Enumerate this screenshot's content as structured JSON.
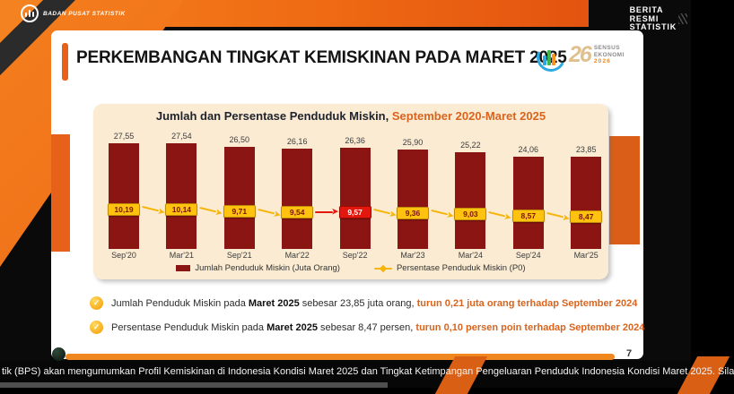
{
  "header": {
    "brand": "BADAN PUSAT STATISTIK",
    "brs_lines": [
      "BERITA",
      "RESMI",
      "STATISTIK"
    ]
  },
  "slide": {
    "title": "PERKEMBANGAN TINGKAT KEMISKINAN PADA MARET 2025",
    "page_number": "7",
    "sensus_logo": {
      "swirl": "26",
      "line1": "SENSUS",
      "line2": "EKONOMI",
      "year": "2026"
    }
  },
  "chart_data": {
    "type": "bar",
    "subtype": "bar+line combo",
    "title": "Jumlah dan Persentase Penduduk Miskin,",
    "title_highlight": " September 2020-Maret 2025",
    "categories": [
      "Sep'20",
      "Mar'21",
      "Sep'21",
      "Mar'22",
      "Sep'22",
      "Mar'23",
      "Mar'24",
      "Sep'24",
      "Mar'25"
    ],
    "series": [
      {
        "name": "Jumlah Penduduk Miskin (Juta Orang)",
        "type": "bar",
        "color": "#8A1513",
        "values": [
          27.55,
          27.54,
          26.5,
          26.16,
          26.36,
          25.9,
          25.22,
          24.06,
          23.85
        ],
        "labels": [
          "27,55",
          "27,54",
          "26,50",
          "26,16",
          "26,36",
          "25,90",
          "25,22",
          "24,06",
          "23,85"
        ]
      },
      {
        "name": "Persentase Penduduk Miskin (P0)",
        "type": "line",
        "color": "#F5B50A",
        "values": [
          10.19,
          10.14,
          9.71,
          9.54,
          9.57,
          9.36,
          9.03,
          8.57,
          8.47
        ],
        "labels": [
          "10,19",
          "10,14",
          "9,71",
          "9,54",
          "9,57",
          "9,36",
          "9,03",
          "8,57",
          "8,47"
        ],
        "highlight_index": 4
      }
    ],
    "ylim": [
      0,
      30
    ],
    "grid": false,
    "legend_position": "bottom"
  },
  "findings": [
    {
      "pre": "Jumlah Penduduk Miskin pada ",
      "bold": "Maret 2025",
      "mid": " sebesar 23,85 juta orang, ",
      "highlight": "turun 0,21 juta orang terhadap September 2024"
    },
    {
      "pre": "Persentase Penduduk Miskin pada ",
      "bold": "Maret 2025",
      "mid": " sebesar 8,47 persen, ",
      "highlight": "turun 0,10 persen poin terhadap September 2024"
    }
  ],
  "ticker": {
    "text": "tik (BPS) akan mengumumkan Profil Kemiskinan di Indonesia Kondisi Maret 2025 dan Tingkat Ketimpangan Pengeluaran Penduduk Indonesia Kondisi Maret 2025. Sila"
  },
  "colors": {
    "accent_orange": "#E8611A",
    "bar_maroon": "#8A1513",
    "label_yellow": "#FFC20E",
    "highlight_red": "#E3170D",
    "panel_cream": "#FAEBD2",
    "text_orange": "#D9641E"
  }
}
